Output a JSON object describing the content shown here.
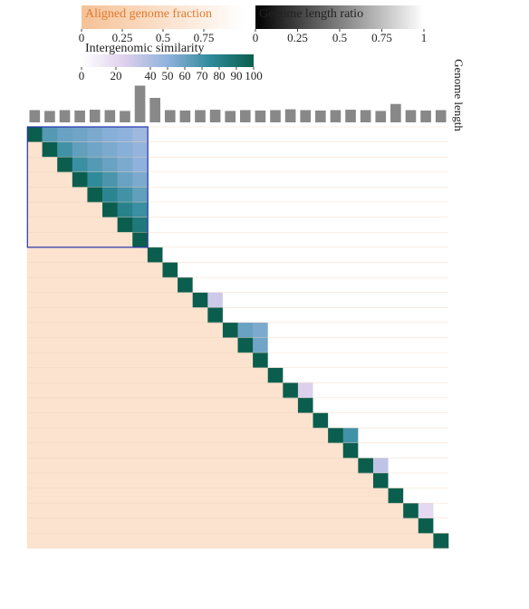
{
  "chart_data": {
    "type": "heatmap",
    "legends": [
      {
        "title": "Aligned genome fraction",
        "lim": [
          0,
          1
        ],
        "ticks": [
          0,
          0.25,
          0.5,
          0.75
        ],
        "colors": [
          "#f6c196",
          "#ffffff"
        ]
      },
      {
        "title": "Genome length ratio",
        "lim": [
          0,
          1
        ],
        "ticks": [
          0,
          0.25,
          0.5,
          0.75,
          1
        ],
        "colors": [
          "#000000",
          "#ffffff"
        ]
      },
      {
        "title": "Intergenomic similarity",
        "lim": [
          0,
          100
        ],
        "ticks": [
          0,
          20,
          40,
          50,
          60,
          70,
          80,
          90,
          100
        ],
        "colors": [
          "#ffffff",
          "#ddd0ec",
          "#8fb2dc",
          "#2f8a9a",
          "#0b5e4e"
        ]
      }
    ],
    "genome_length_label": "Genome length",
    "genome_length": [
      30,
      28,
      30,
      29,
      31,
      30,
      28,
      90,
      60,
      30,
      29,
      30,
      31,
      28,
      30,
      29,
      30,
      32,
      30,
      29,
      30,
      31,
      30,
      28,
      45,
      30,
      29,
      30
    ],
    "genome_length_lim": [
      0,
      100
    ],
    "lower_color": "#fbe3cf",
    "similarity": [
      [
        100,
        65,
        60,
        58,
        55,
        52,
        50,
        45,
        0,
        0,
        0,
        0,
        0,
        0,
        0,
        0,
        0,
        0,
        0,
        0,
        0,
        0,
        0,
        0,
        0,
        0,
        0,
        0
      ],
      [
        100,
        70,
        62,
        58,
        55,
        52,
        48,
        0,
        0,
        0,
        0,
        0,
        0,
        0,
        0,
        0,
        0,
        0,
        0,
        0,
        0,
        0,
        0,
        0,
        0,
        0,
        0
      ],
      [
        100,
        72,
        65,
        60,
        55,
        50,
        0,
        0,
        0,
        0,
        0,
        0,
        0,
        0,
        0,
        0,
        0,
        0,
        0,
        0,
        0,
        0,
        0,
        0,
        0,
        0
      ],
      [
        100,
        75,
        68,
        60,
        55,
        0,
        0,
        0,
        0,
        0,
        0,
        0,
        0,
        0,
        0,
        0,
        0,
        0,
        0,
        0,
        0,
        0,
        0,
        0,
        0
      ],
      [
        100,
        78,
        70,
        62,
        0,
        0,
        0,
        0,
        0,
        0,
        0,
        0,
        0,
        0,
        0,
        0,
        0,
        0,
        0,
        0,
        0,
        0,
        0,
        0
      ],
      [
        100,
        80,
        72,
        0,
        0,
        0,
        0,
        0,
        0,
        0,
        0,
        0,
        0,
        0,
        0,
        0,
        0,
        0,
        0,
        0,
        0,
        0,
        0
      ],
      [
        100,
        85,
        0,
        0,
        0,
        0,
        0,
        0,
        0,
        0,
        0,
        0,
        0,
        0,
        0,
        0,
        0,
        0,
        0,
        0,
        0,
        0
      ],
      [
        100,
        0,
        0,
        0,
        0,
        0,
        0,
        0,
        0,
        0,
        0,
        0,
        0,
        0,
        0,
        0,
        0,
        0,
        0,
        0,
        0
      ],
      [
        100,
        0,
        0,
        0,
        0,
        0,
        0,
        0,
        0,
        0,
        0,
        0,
        0,
        0,
        0,
        0,
        0,
        0,
        0,
        0
      ],
      [
        100,
        0,
        0,
        0,
        0,
        0,
        0,
        0,
        0,
        0,
        0,
        0,
        0,
        0,
        0,
        0,
        0,
        0,
        0
      ],
      [
        100,
        0,
        0,
        0,
        0,
        0,
        0,
        0,
        0,
        0,
        0,
        0,
        0,
        0,
        0,
        0,
        0,
        0
      ],
      [
        100,
        30,
        0,
        0,
        0,
        0,
        0,
        0,
        0,
        0,
        0,
        0,
        0,
        0,
        0,
        0,
        0
      ],
      [
        100,
        0,
        0,
        0,
        0,
        0,
        0,
        0,
        0,
        0,
        0,
        0,
        0,
        0,
        0,
        0
      ],
      [
        100,
        60,
        55,
        0,
        0,
        0,
        0,
        0,
        0,
        0,
        0,
        0,
        0,
        0,
        0
      ],
      [
        100,
        58,
        0,
        0,
        0,
        0,
        0,
        0,
        0,
        0,
        0,
        0,
        0,
        0
      ],
      [
        100,
        0,
        0,
        0,
        0,
        0,
        0,
        0,
        0,
        0,
        0,
        0,
        0
      ],
      [
        100,
        0,
        0,
        0,
        0,
        0,
        0,
        0,
        0,
        0,
        0,
        0
      ],
      [
        100,
        25,
        0,
        0,
        0,
        0,
        0,
        0,
        0,
        0,
        0
      ],
      [
        100,
        0,
        0,
        0,
        0,
        0,
        0,
        0,
        0,
        0
      ],
      [
        100,
        0,
        0,
        0,
        0,
        0,
        0,
        0,
        0
      ],
      [
        100,
        70,
        0,
        0,
        0,
        0,
        0,
        0
      ],
      [
        100,
        0,
        0,
        0,
        0,
        0,
        0
      ],
      [
        100,
        35,
        0,
        0,
        0,
        0
      ],
      [
        100,
        0,
        0,
        0,
        0
      ],
      [
        100,
        0,
        0,
        0
      ],
      [
        100,
        20,
        0
      ],
      [
        100,
        0
      ],
      [
        100
      ]
    ]
  }
}
